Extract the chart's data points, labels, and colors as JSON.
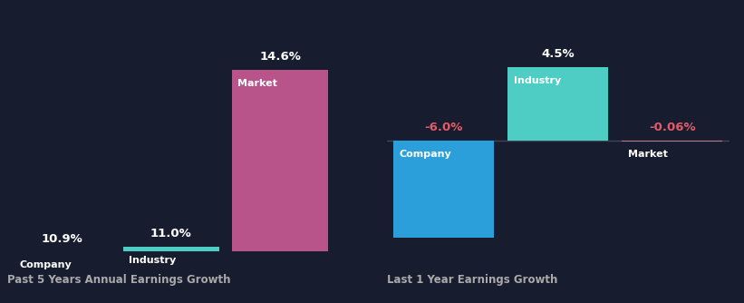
{
  "background_color": "#171c2e",
  "chart1": {
    "title": "Past 5 Years Annual Earnings Growth",
    "bars": [
      {
        "label": "Company",
        "value": 10.9,
        "color": "#2b9fd9"
      },
      {
        "label": "Industry",
        "value": 11.0,
        "color": "#4ecdc4"
      },
      {
        "label": "Market",
        "value": 14.6,
        "color": "#b8548a"
      }
    ]
  },
  "chart2": {
    "title": "Last 1 Year Earnings Growth",
    "bars": [
      {
        "label": "Company",
        "value": -6.0,
        "color": "#2b9fd9"
      },
      {
        "label": "Industry",
        "value": 4.5,
        "color": "#4ecdc4"
      },
      {
        "label": "Market",
        "value": -0.06,
        "color": "#c0768a"
      }
    ]
  },
  "text_color": "#ffffff",
  "label_color_negative": "#e05c6a",
  "title_color": "#aaaaaa",
  "axis_line_color": "#444458",
  "bar_gap": 0.05
}
